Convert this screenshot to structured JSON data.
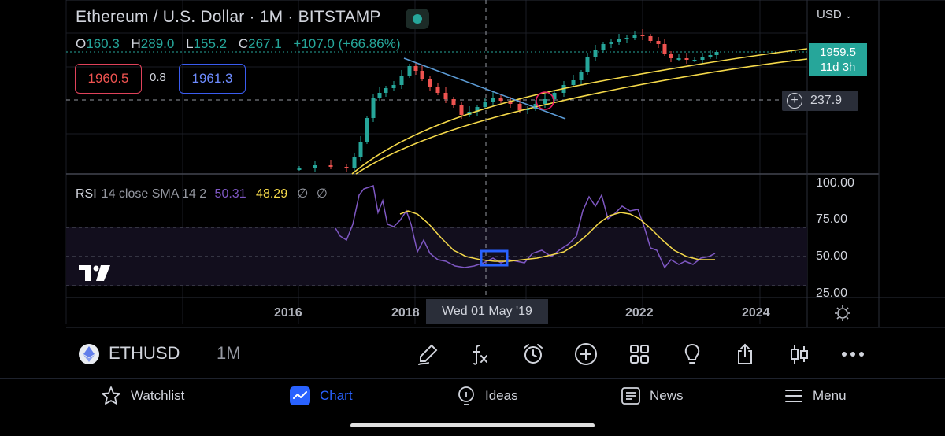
{
  "header": {
    "title": "Ethereum / U.S. Dollar · 1M · BITSTAMP",
    "currency": "USD",
    "ohlc": {
      "o_label": "O",
      "o": "160.3",
      "h_label": "H",
      "h": "289.0",
      "l_label": "L",
      "l": "155.2",
      "c_label": "C",
      "c": "267.1",
      "change": "+107.0 (+66.86%)"
    },
    "sell_price": "1960.5",
    "spread": "0.8",
    "buy_price": "1961.3"
  },
  "price_scale": {
    "last_price": "1959.5",
    "countdown": "11d 3h",
    "crosshair_price": "237.9"
  },
  "rsi": {
    "name": "RSI",
    "params": "14 close SMA 14 2",
    "rsi_value": "50.31",
    "sma_value": "48.29",
    "extra1": "∅",
    "extra2": "∅",
    "levels": [
      "100.00",
      "75.00",
      "50.00",
      "25.00"
    ]
  },
  "time_axis": {
    "labels": [
      "2016",
      "2018",
      "2022",
      "2024"
    ],
    "crosshair_date": "Wed 01 May '19"
  },
  "colors": {
    "up": "#26a69a",
    "down": "#ef5350",
    "rsi": "#7e57c2",
    "rsi_sma": "#f5d94a",
    "trend": "#5b9bd5",
    "active": "#2962ff"
  },
  "toolbar": {
    "symbol": "ETHUSD",
    "timeframe": "1M",
    "tools": [
      "brush-icon",
      "fx-icon",
      "alarm-clock-icon",
      "plus-circle-icon",
      "grid-icon",
      "lightbulb-icon",
      "share-icon",
      "candles-icon",
      "more-icon"
    ]
  },
  "nav": [
    {
      "label": "Watchlist",
      "icon": "star-icon"
    },
    {
      "label": "Chart",
      "icon": "chart-icon",
      "active": true
    },
    {
      "label": "Ideas",
      "icon": "ideas-icon"
    },
    {
      "label": "News",
      "icon": "news-icon"
    },
    {
      "label": "Menu",
      "icon": "menu-icon"
    }
  ]
}
